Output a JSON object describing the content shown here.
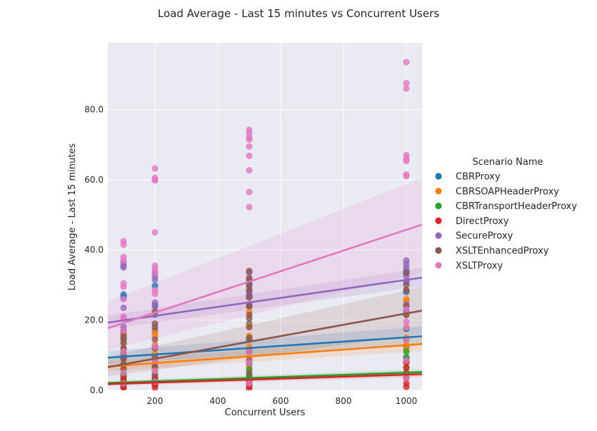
{
  "chart_data": {
    "type": "scatter",
    "title": "Load Average - Last 15 minutes vs Concurrent Users",
    "xlabel": "Concurrent Users",
    "ylabel": "Load Average - Last 15 minutes",
    "xlim": [
      50,
      1050
    ],
    "ylim": [
      0,
      99
    ],
    "x_ticks": [
      200,
      400,
      600,
      800,
      1000
    ],
    "x_tick_labels": [
      "200",
      "400",
      "600",
      "800",
      "1000"
    ],
    "y_ticks": [
      0,
      20,
      40,
      60,
      80
    ],
    "y_tick_labels": [
      "0.0",
      "20.0",
      "40.0",
      "60.0",
      "80.0"
    ],
    "grid": true,
    "background": "#eaeaf2",
    "legend": {
      "title": "Scenario Name",
      "placement": "right"
    },
    "series": [
      {
        "name": "CBRProxy",
        "color": "#1f77b4",
        "points": [
          [
            100,
            27.3
          ],
          [
            100,
            26.5
          ],
          [
            100,
            14.5
          ],
          [
            100,
            12
          ],
          [
            100,
            9.5
          ],
          [
            100,
            7
          ],
          [
            100,
            4.5
          ],
          [
            200,
            29.8
          ],
          [
            200,
            24.2
          ],
          [
            200,
            17
          ],
          [
            200,
            12.5
          ],
          [
            200,
            9.5
          ],
          [
            200,
            6.5
          ],
          [
            200,
            3.5
          ],
          [
            500,
            30.5
          ],
          [
            500,
            27
          ],
          [
            500,
            24
          ],
          [
            500,
            19
          ],
          [
            500,
            14.5
          ],
          [
            500,
            11
          ],
          [
            500,
            7.5
          ],
          [
            500,
            4
          ],
          [
            1000,
            34
          ],
          [
            1000,
            31
          ],
          [
            1000,
            28
          ],
          [
            1000,
            22.5
          ],
          [
            1000,
            17.5
          ],
          [
            1000,
            14.5
          ],
          [
            1000,
            12.5
          ],
          [
            1000,
            9
          ]
        ],
        "fit": {
          "y_start": 9.3,
          "y_end": 15.4,
          "band_lower": [
            7.6,
            12.8
          ],
          "band_upper": [
            11.2,
            18.2
          ]
        }
      },
      {
        "name": "CBRSOAPHeaderProxy",
        "color": "#ff7f0e",
        "points": [
          [
            100,
            15.5
          ],
          [
            100,
            13.5
          ],
          [
            100,
            11.5
          ],
          [
            100,
            9
          ],
          [
            100,
            6.5
          ],
          [
            100,
            4
          ],
          [
            200,
            16.5
          ],
          [
            200,
            15.5
          ],
          [
            200,
            13
          ],
          [
            200,
            10.5
          ],
          [
            200,
            8.5
          ],
          [
            200,
            6
          ],
          [
            200,
            3.5
          ],
          [
            500,
            26.5
          ],
          [
            500,
            22.5
          ],
          [
            500,
            18.5
          ],
          [
            500,
            15.5
          ],
          [
            500,
            12.5
          ],
          [
            500,
            9.5
          ],
          [
            500,
            6.5
          ],
          [
            500,
            3.5
          ],
          [
            1000,
            26
          ],
          [
            1000,
            25.5
          ],
          [
            1000,
            21.5
          ],
          [
            1000,
            18
          ],
          [
            1000,
            15
          ],
          [
            1000,
            13
          ],
          [
            1000,
            11.5
          ],
          [
            1000,
            8
          ]
        ],
        "fit": {
          "y_start": 6.8,
          "y_end": 13.2,
          "band_lower": [
            5.5,
            11.2
          ],
          "band_upper": [
            8.2,
            15.4
          ]
        }
      },
      {
        "name": "CBRTransportHeaderProxy",
        "color": "#2ca02c",
        "points": [
          [
            100,
            4.5
          ],
          [
            100,
            3.5
          ],
          [
            100,
            2.5
          ],
          [
            100,
            1.5
          ],
          [
            100,
            0.8
          ],
          [
            200,
            4.5
          ],
          [
            200,
            3.5
          ],
          [
            200,
            2.5
          ],
          [
            200,
            1.5
          ],
          [
            500,
            6
          ],
          [
            500,
            4.5
          ],
          [
            500,
            3.5
          ],
          [
            500,
            2.5
          ],
          [
            500,
            1.5
          ],
          [
            1000,
            11
          ],
          [
            1000,
            9.5
          ],
          [
            1000,
            8
          ],
          [
            1000,
            6.5
          ],
          [
            1000,
            5
          ],
          [
            1000,
            3.5
          ]
        ],
        "fit": {
          "y_start": 2.1,
          "y_end": 5.2,
          "band_lower": [
            1.5,
            4.3
          ],
          "band_upper": [
            2.7,
            6.0
          ]
        }
      },
      {
        "name": "DirectProxy",
        "color": "#d62728",
        "points": [
          [
            100,
            3.5
          ],
          [
            100,
            2.5
          ],
          [
            100,
            1.5
          ],
          [
            100,
            0.8
          ],
          [
            200,
            3.5
          ],
          [
            200,
            2.5
          ],
          [
            200,
            1.5
          ],
          [
            200,
            0.8
          ],
          [
            500,
            3
          ],
          [
            500,
            2
          ],
          [
            500,
            1.2
          ],
          [
            500,
            0.6
          ],
          [
            1000,
            8
          ],
          [
            1000,
            6.5
          ],
          [
            1000,
            5
          ],
          [
            1000,
            3.5
          ],
          [
            1000,
            2
          ],
          [
            1000,
            1
          ]
        ],
        "fit": {
          "y_start": 1.8,
          "y_end": 4.6,
          "band_lower": [
            1.3,
            3.8
          ],
          "band_upper": [
            2.3,
            5.4
          ]
        }
      },
      {
        "name": "SecureProxy",
        "color": "#9467bd",
        "points": [
          [
            100,
            36.5
          ],
          [
            100,
            35.5
          ],
          [
            100,
            35
          ],
          [
            100,
            23.5
          ],
          [
            100,
            18
          ],
          [
            100,
            9
          ],
          [
            200,
            33.5
          ],
          [
            200,
            32.5
          ],
          [
            200,
            31.5
          ],
          [
            200,
            25
          ],
          [
            200,
            24
          ],
          [
            200,
            21.5
          ],
          [
            500,
            33.5
          ],
          [
            500,
            29.5
          ],
          [
            500,
            28
          ],
          [
            500,
            27.5
          ],
          [
            500,
            26.5
          ],
          [
            500,
            24.5
          ],
          [
            1000,
            37
          ],
          [
            1000,
            36
          ],
          [
            1000,
            35
          ],
          [
            1000,
            33.5
          ],
          [
            1000,
            32.5
          ],
          [
            1000,
            31
          ],
          [
            1000,
            28.5
          ],
          [
            1000,
            24.5
          ]
        ],
        "fit": {
          "y_start": 19.3,
          "y_end": 32.1,
          "band_lower": [
            17.5,
            29.6
          ],
          "band_upper": [
            21.3,
            34.8
          ]
        }
      },
      {
        "name": "XSLTEnhancedProxy",
        "color": "#8c564b",
        "points": [
          [
            100,
            17
          ],
          [
            100,
            16
          ],
          [
            100,
            15
          ],
          [
            100,
            13.5
          ],
          [
            100,
            12
          ],
          [
            100,
            10.5
          ],
          [
            100,
            9
          ],
          [
            100,
            7.5
          ],
          [
            100,
            6
          ],
          [
            200,
            22.5
          ],
          [
            200,
            19
          ],
          [
            200,
            18
          ],
          [
            200,
            14.5
          ],
          [
            200,
            12
          ],
          [
            200,
            9
          ],
          [
            200,
            7
          ],
          [
            200,
            4.5
          ],
          [
            200,
            2.5
          ],
          [
            500,
            34
          ],
          [
            500,
            32
          ],
          [
            500,
            31.5
          ],
          [
            500,
            30
          ],
          [
            500,
            28.5
          ],
          [
            500,
            26.5
          ],
          [
            500,
            24
          ],
          [
            500,
            21.5
          ],
          [
            500,
            20.5
          ],
          [
            500,
            18
          ],
          [
            500,
            15
          ],
          [
            500,
            11.5
          ],
          [
            500,
            8.5
          ],
          [
            500,
            5
          ],
          [
            500,
            2
          ],
          [
            1000,
            33.5
          ],
          [
            1000,
            30
          ],
          [
            1000,
            28.5
          ],
          [
            1000,
            24
          ],
          [
            1000,
            21.5
          ]
        ],
        "fit": {
          "y_start": 6.6,
          "y_end": 22.7,
          "band_lower": [
            4.0,
            16.0
          ],
          "band_upper": [
            9.6,
            29.5
          ]
        }
      },
      {
        "name": "XSLTProxy",
        "color": "#e377c2",
        "points": [
          [
            100,
            42.5
          ],
          [
            100,
            41.5
          ],
          [
            100,
            38
          ],
          [
            100,
            37
          ],
          [
            100,
            30.5
          ],
          [
            100,
            29.5
          ],
          [
            100,
            26
          ],
          [
            100,
            21
          ],
          [
            100,
            20.5
          ],
          [
            100,
            17
          ],
          [
            100,
            11
          ],
          [
            100,
            5
          ],
          [
            100,
            2
          ],
          [
            200,
            63.2
          ],
          [
            200,
            60.5
          ],
          [
            200,
            60
          ],
          [
            200,
            59.8
          ],
          [
            200,
            45
          ],
          [
            200,
            35.5
          ],
          [
            200,
            34.5
          ],
          [
            200,
            33.5
          ],
          [
            200,
            28.5
          ],
          [
            200,
            27.5
          ],
          [
            200,
            12.5
          ],
          [
            200,
            8.5
          ],
          [
            200,
            5.5
          ],
          [
            200,
            2.5
          ],
          [
            500,
            74.2
          ],
          [
            500,
            73.2
          ],
          [
            500,
            72
          ],
          [
            500,
            71.5
          ],
          [
            500,
            69.5
          ],
          [
            500,
            66.8
          ],
          [
            500,
            62.7
          ],
          [
            500,
            56.5
          ],
          [
            500,
            52.2
          ],
          [
            500,
            11
          ],
          [
            500,
            8
          ],
          [
            500,
            2
          ],
          [
            1000,
            93.5
          ],
          [
            1000,
            87.5
          ],
          [
            1000,
            86
          ],
          [
            1000,
            67
          ],
          [
            1000,
            66
          ],
          [
            1000,
            65.3
          ],
          [
            1000,
            61.5
          ],
          [
            1000,
            61
          ],
          [
            1000,
            23
          ],
          [
            1000,
            19.5
          ],
          [
            1000,
            18
          ],
          [
            1000,
            14.5
          ],
          [
            1000,
            8.5
          ],
          [
            1000,
            3.5
          ]
        ],
        "fit": {
          "y_start": 17.7,
          "y_end": 47.2,
          "band_lower": [
            11.5,
            33.5
          ],
          "band_upper": [
            25.3,
            60.5
          ]
        }
      }
    ]
  }
}
